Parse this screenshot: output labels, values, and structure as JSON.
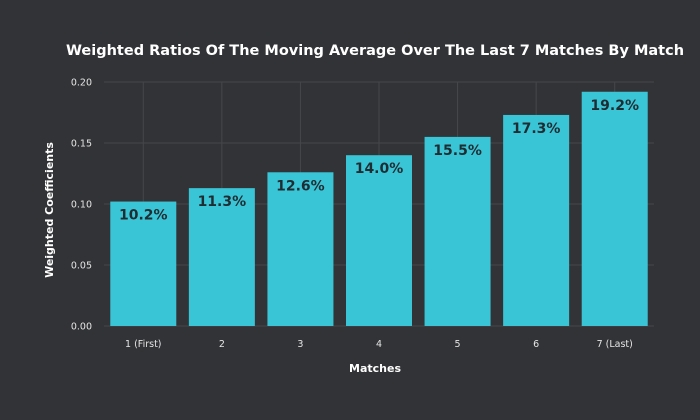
{
  "chart_data": {
    "type": "bar",
    "title": "Weighted Ratios Of The Moving Average Over The Last 7 Matches By Match",
    "xlabel": "Matches",
    "ylabel": "Weighted Coefficients",
    "categories": [
      "1 (First)",
      "2",
      "3",
      "4",
      "5",
      "6",
      "7 (Last)"
    ],
    "values": [
      0.102,
      0.113,
      0.126,
      0.14,
      0.155,
      0.173,
      0.192
    ],
    "data_labels": [
      "10.2%",
      "11.3%",
      "12.6%",
      "14.0%",
      "15.5%",
      "17.3%",
      "19.2%"
    ],
    "ylim": [
      0,
      0.2
    ],
    "yticks": [
      "0.00",
      "0.05",
      "0.10",
      "0.15",
      "0.20"
    ],
    "grid": true,
    "legend": "none",
    "colors": {
      "background": "#323336",
      "bar": "#3ac5d6",
      "grid": "#45474b",
      "text": "#ffffff",
      "data_label": "#1f2d33"
    }
  }
}
